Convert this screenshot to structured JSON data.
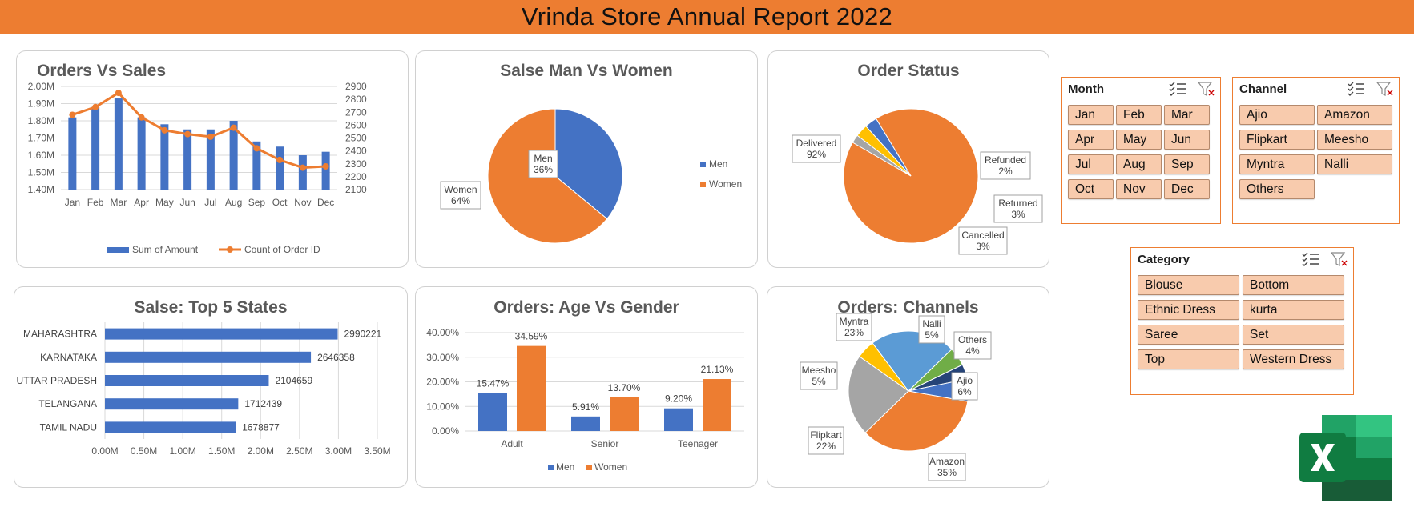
{
  "report": {
    "title": "Vrinda Store Annual Report 2022"
  },
  "colors": {
    "accent": "#ed7d31",
    "blue": "#4472c4",
    "orange": "#ed7d31",
    "gray": "#a5a5a5",
    "yellow": "#ffc000",
    "lightblue": "#5b9bd5",
    "green": "#70ad47",
    "navy": "#264478",
    "slicer_button": "#f8cbad"
  },
  "chart_data": [
    {
      "type": "bar",
      "title": "Orders Vs Sales",
      "categories": [
        "Jan",
        "Feb",
        "Mar",
        "Apr",
        "May",
        "Jun",
        "Jul",
        "Aug",
        "Sep",
        "Oct",
        "Nov",
        "Dec"
      ],
      "series": [
        {
          "name": "Sum of Amount",
          "type": "bar",
          "axis": "left",
          "values": [
            1.82,
            1.88,
            1.93,
            1.82,
            1.78,
            1.75,
            1.75,
            1.8,
            1.68,
            1.65,
            1.6,
            1.62
          ]
        },
        {
          "name": "Count of Order ID",
          "type": "line",
          "axis": "right",
          "values": [
            2680,
            2740,
            2850,
            2660,
            2560,
            2530,
            2510,
            2580,
            2420,
            2330,
            2270,
            2280
          ]
        }
      ],
      "yticks_left": [
        "1.40M",
        "1.50M",
        "1.60M",
        "1.70M",
        "1.80M",
        "1.90M",
        "2.00M"
      ],
      "yticks_right": [
        "2100",
        "2200",
        "2300",
        "2400",
        "2500",
        "2600",
        "2700",
        "2800",
        "2900"
      ],
      "ylim_left": [
        1.4,
        2.0
      ],
      "ylim_right": [
        2100,
        2900
      ],
      "legend": "bottom",
      "grid": true
    },
    {
      "type": "pie",
      "title": "Salse Man Vs Women",
      "slices": [
        {
          "label": "Men",
          "value": 36,
          "display": "36%"
        },
        {
          "label": "Women",
          "value": 64,
          "display": "64%"
        }
      ],
      "legend": "right"
    },
    {
      "type": "pie",
      "title": "Order Status",
      "slices": [
        {
          "label": "Delivered",
          "value": 92,
          "display": "92%"
        },
        {
          "label": "Refunded",
          "value": 2,
          "display": "2%"
        },
        {
          "label": "Returned",
          "value": 3,
          "display": "3%"
        },
        {
          "label": "Cancelled",
          "value": 3,
          "display": "3%"
        }
      ]
    },
    {
      "type": "bar",
      "orientation": "horizontal",
      "title": "Salse: Top 5 States",
      "categories": [
        "MAHARASHTRA",
        "KARNATAKA",
        "UTTAR PRADESH",
        "TELANGANA",
        "TAMIL NADU"
      ],
      "values": [
        2990221,
        2646358,
        2104659,
        1712439,
        1678877
      ],
      "xticks": [
        "0.00M",
        "0.50M",
        "1.00M",
        "1.50M",
        "2.00M",
        "2.50M",
        "3.00M",
        "3.50M"
      ],
      "xlim": [
        0,
        3500000
      ],
      "grid": true
    },
    {
      "type": "bar",
      "title": "Orders: Age Vs Gender",
      "categories": [
        "Adult",
        "Senior",
        "Teenager"
      ],
      "series": [
        {
          "name": "Men",
          "values": [
            15.47,
            5.91,
            9.2
          ],
          "labels": [
            "15.47%",
            "5.91%",
            "9.20%"
          ]
        },
        {
          "name": "Women",
          "values": [
            34.59,
            13.7,
            21.13
          ],
          "labels": [
            "34.59%",
            "13.70%",
            "21.13%"
          ]
        }
      ],
      "yticks": [
        "0.00%",
        "10.00%",
        "20.00%",
        "30.00%",
        "40.00%"
      ],
      "ylim": [
        0,
        40
      ],
      "legend": "bottom",
      "grid": true
    },
    {
      "type": "pie",
      "title": "Orders: Channels",
      "slices": [
        {
          "label": "Amazon",
          "value": 35,
          "display": "35%"
        },
        {
          "label": "Flipkart",
          "value": 22,
          "display": "22%"
        },
        {
          "label": "Meesho",
          "value": 5,
          "display": "5%"
        },
        {
          "label": "Myntra",
          "value": 23,
          "display": "23%"
        },
        {
          "label": "Nalli",
          "value": 5,
          "display": "5%"
        },
        {
          "label": "Others",
          "value": 4,
          "display": "4%"
        },
        {
          "label": "Ajio",
          "value": 6,
          "display": "6%"
        }
      ]
    }
  ],
  "slicers": {
    "month": {
      "title": "Month",
      "items": [
        "Jan",
        "Feb",
        "Mar",
        "Apr",
        "May",
        "Jun",
        "Jul",
        "Aug",
        "Sep",
        "Oct",
        "Nov",
        "Dec"
      ]
    },
    "channel": {
      "title": "Channel",
      "items": [
        "Ajio",
        "Amazon",
        "Flipkart",
        "Meesho",
        "Myntra",
        "Nalli",
        "Others"
      ]
    },
    "category": {
      "title": "Category",
      "items": [
        "Blouse",
        "Bottom",
        "Ethnic Dress",
        "kurta",
        "Saree",
        "Set",
        "Top",
        "Western Dress"
      ]
    }
  },
  "icons": {
    "multi_select": "multi-select-icon",
    "clear_filter": "clear-filter-icon",
    "logo": "excel-logo"
  }
}
